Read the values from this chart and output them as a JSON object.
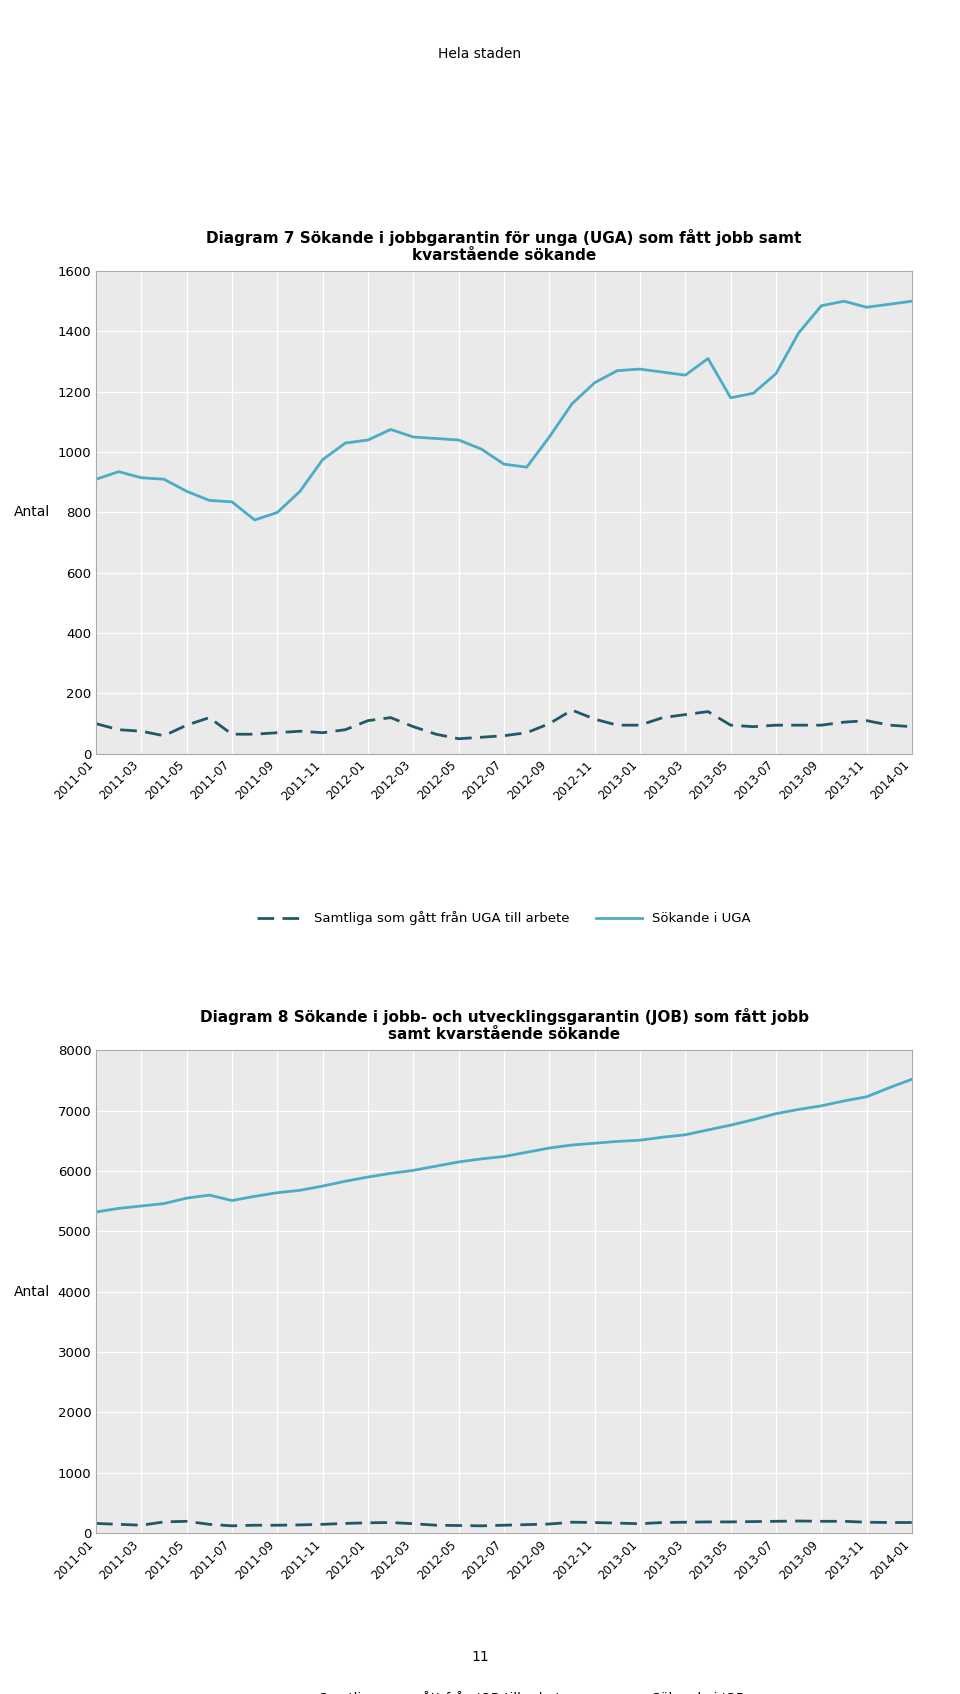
{
  "page_title": "Hela staden",
  "chart1_title": "Diagram 7 Sökande i jobbgarantin för unga (UGA) som fått jobb samt\nkvarstående sökande",
  "chart2_title": "Diagram 8 Sökande i jobb- och utvecklingsgarantin (JOB) som fått jobb\nsamt kvarstående sökande",
  "x_labels": [
    "2011-01",
    "2011-03",
    "2011-05",
    "2011-07",
    "2011-09",
    "2011-11",
    "2012-01",
    "2012-03",
    "2012-05",
    "2012-07",
    "2012-09",
    "2012-11",
    "2013-01",
    "2013-03",
    "2013-05",
    "2013-07",
    "2013-09",
    "2013-11",
    "2014-01"
  ],
  "uga_sokande": [
    910,
    935,
    915,
    910,
    870,
    840,
    835,
    775,
    800,
    870,
    975,
    1030,
    1040,
    1075,
    1050,
    1045,
    1040,
    1010,
    960,
    950,
    1050,
    1160,
    1230,
    1270,
    1275,
    1265,
    1255,
    1310,
    1180,
    1195,
    1260,
    1395,
    1485,
    1500,
    1480,
    1490,
    1500
  ],
  "uga_arbete": [
    100,
    80,
    75,
    60,
    95,
    120,
    65,
    65,
    70,
    75,
    70,
    80,
    110,
    120,
    90,
    65,
    50,
    55,
    60,
    70,
    100,
    145,
    115,
    95,
    95,
    120,
    130,
    140,
    95,
    90,
    95,
    95,
    95,
    105,
    110,
    95,
    90
  ],
  "job_sokande": [
    5320,
    5380,
    5420,
    5460,
    5550,
    5600,
    5510,
    5580,
    5640,
    5680,
    5750,
    5830,
    5900,
    5960,
    6010,
    6080,
    6150,
    6200,
    6240,
    6310,
    6380,
    6430,
    6460,
    6490,
    6510,
    6560,
    6600,
    6680,
    6760,
    6850,
    6950,
    7020,
    7080,
    7160,
    7230,
    7380,
    7520
  ],
  "job_arbete": [
    160,
    145,
    130,
    185,
    195,
    145,
    120,
    130,
    130,
    135,
    145,
    160,
    170,
    175,
    155,
    130,
    125,
    120,
    130,
    140,
    150,
    180,
    175,
    165,
    155,
    175,
    180,
    185,
    185,
    190,
    195,
    200,
    195,
    195,
    180,
    175,
    175
  ],
  "color_solid": "#4BACC6",
  "color_dashed": "#215868",
  "legend1_solid": "Sökande i UGA",
  "legend1_dashed": "Samtliga som gått från UGA till arbete",
  "legend2_solid": "Sökande i JOB",
  "legend2_dashed": "Samtliga som gått från JOB till arbete",
  "ylabel": "Antal",
  "chart1_ylim": [
    0,
    1600
  ],
  "chart1_yticks": [
    0,
    200,
    400,
    600,
    800,
    1000,
    1200,
    1400,
    1600
  ],
  "chart2_ylim": [
    0,
    8000
  ],
  "chart2_yticks": [
    0,
    1000,
    2000,
    3000,
    4000,
    5000,
    6000,
    7000,
    8000
  ],
  "page_number": "11",
  "background_color": "#ffffff",
  "plot_bg_color": "#eaeaea"
}
